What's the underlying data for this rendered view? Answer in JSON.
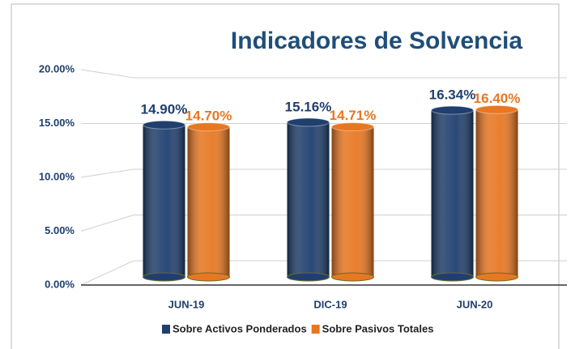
{
  "chart_data": {
    "type": "bar",
    "title": "Indicadores de Solvencia",
    "categories": [
      "JUN-19",
      "DIC-19",
      "JUN-20"
    ],
    "series": [
      {
        "name": "Sobre Activos Ponderados",
        "color": "#1f3f6e",
        "values": [
          14.9,
          15.16,
          16.34
        ],
        "value_labels": [
          "14.90%",
          "15.16%",
          "16.34%"
        ]
      },
      {
        "name": "Sobre Pasivos Totales",
        "color": "#e87722",
        "values": [
          14.7,
          14.71,
          16.4
        ],
        "value_labels": [
          "14.70%",
          "14.71%",
          "16.40%"
        ]
      }
    ],
    "ylim": [
      0,
      20
    ],
    "yticks": [
      {
        "value": 0,
        "label": "0.00%"
      },
      {
        "value": 5,
        "label": "5.00%"
      },
      {
        "value": 10,
        "label": "10.00%"
      },
      {
        "value": 15,
        "label": "15.00%"
      },
      {
        "value": 20,
        "label": "20.00%"
      }
    ],
    "grid": true,
    "legend": "bottom"
  }
}
